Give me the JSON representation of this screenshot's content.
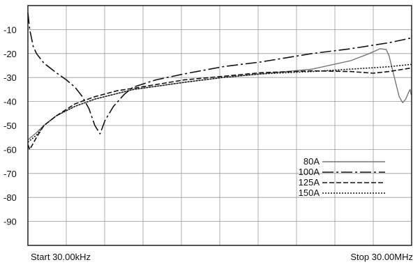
{
  "chart_data": {
    "type": "line",
    "title": "",
    "xlabel": "",
    "ylabel": "",
    "x_scale": "log",
    "xlim_hz": [
      30000,
      30000000
    ],
    "ylim": [
      -100,
      0
    ],
    "y_ticks": [
      -10,
      -20,
      -30,
      -40,
      -50,
      -60,
      -70,
      -80,
      -90
    ],
    "y_tick_labels": [
      "-10",
      "-20",
      "-30",
      "-40",
      "-50",
      "-60",
      "-70",
      "-80",
      "-90"
    ],
    "x_start_label": "Start 30.00kHz",
    "x_stop_label": "Stop 30.00MHz",
    "grid": true,
    "legend_position": "bottom-right",
    "series": [
      {
        "name": "80A",
        "color": "#777777",
        "dash": "solid",
        "points": [
          [
            30000,
            -56
          ],
          [
            35000,
            -53
          ],
          [
            40000,
            -50
          ],
          [
            50000,
            -46
          ],
          [
            70000,
            -42
          ],
          [
            100000,
            -39
          ],
          [
            200000,
            -35
          ],
          [
            500000,
            -32
          ],
          [
            1000000,
            -30
          ],
          [
            2000000,
            -28.5
          ],
          [
            5000000,
            -26.5
          ],
          [
            10000000,
            -23
          ],
          [
            14000000,
            -20
          ],
          [
            17000000,
            -18
          ],
          [
            19000000,
            -18.3
          ],
          [
            20000000,
            -21
          ],
          [
            22000000,
            -30
          ],
          [
            24000000,
            -38
          ],
          [
            25500000,
            -40.5
          ],
          [
            27000000,
            -39
          ],
          [
            28500000,
            -36
          ],
          [
            29200000,
            -35
          ],
          [
            29700000,
            -37
          ],
          [
            30000000,
            -37
          ]
        ]
      },
      {
        "name": "100A",
        "color": "#111111",
        "dash": "long-short",
        "points": [
          [
            30000,
            -3
          ],
          [
            31000,
            -10
          ],
          [
            33000,
            -17
          ],
          [
            35000,
            -20
          ],
          [
            40000,
            -24
          ],
          [
            50000,
            -28
          ],
          [
            60000,
            -31
          ],
          [
            70000,
            -34
          ],
          [
            80000,
            -38
          ],
          [
            90000,
            -43
          ],
          [
            100000,
            -50
          ],
          [
            110000,
            -53.5
          ],
          [
            120000,
            -48
          ],
          [
            140000,
            -42
          ],
          [
            170000,
            -37
          ],
          [
            200000,
            -34
          ],
          [
            300000,
            -31
          ],
          [
            500000,
            -28.5
          ],
          [
            1000000,
            -25.5
          ],
          [
            2000000,
            -23.5
          ],
          [
            5000000,
            -20
          ],
          [
            10000000,
            -18
          ],
          [
            20000000,
            -15.5
          ],
          [
            30000000,
            -13.5
          ]
        ]
      },
      {
        "name": "125A",
        "color": "#111111",
        "dash": "dashed",
        "points": [
          [
            30000,
            -58
          ],
          [
            31000,
            -60
          ],
          [
            35000,
            -55
          ],
          [
            40000,
            -50
          ],
          [
            50000,
            -46
          ],
          [
            70000,
            -41
          ],
          [
            100000,
            -38
          ],
          [
            150000,
            -35.5
          ],
          [
            200000,
            -34.5
          ],
          [
            500000,
            -31
          ],
          [
            1000000,
            -29.5
          ],
          [
            2000000,
            -28
          ],
          [
            5000000,
            -27.2
          ],
          [
            10000000,
            -27.5
          ],
          [
            15000000,
            -28.2
          ],
          [
            20000000,
            -27.5
          ],
          [
            30000000,
            -26
          ]
        ]
      },
      {
        "name": "150A",
        "color": "#111111",
        "dash": "dotted",
        "points": [
          [
            30000,
            -57
          ],
          [
            35000,
            -54
          ],
          [
            40000,
            -50
          ],
          [
            50000,
            -46
          ],
          [
            70000,
            -42
          ],
          [
            100000,
            -39
          ],
          [
            200000,
            -35
          ],
          [
            500000,
            -32
          ],
          [
            1000000,
            -30
          ],
          [
            2000000,
            -28.5
          ],
          [
            5000000,
            -27.5
          ],
          [
            10000000,
            -26.5
          ],
          [
            20000000,
            -25.5
          ],
          [
            30000000,
            -24.5
          ]
        ]
      }
    ]
  }
}
